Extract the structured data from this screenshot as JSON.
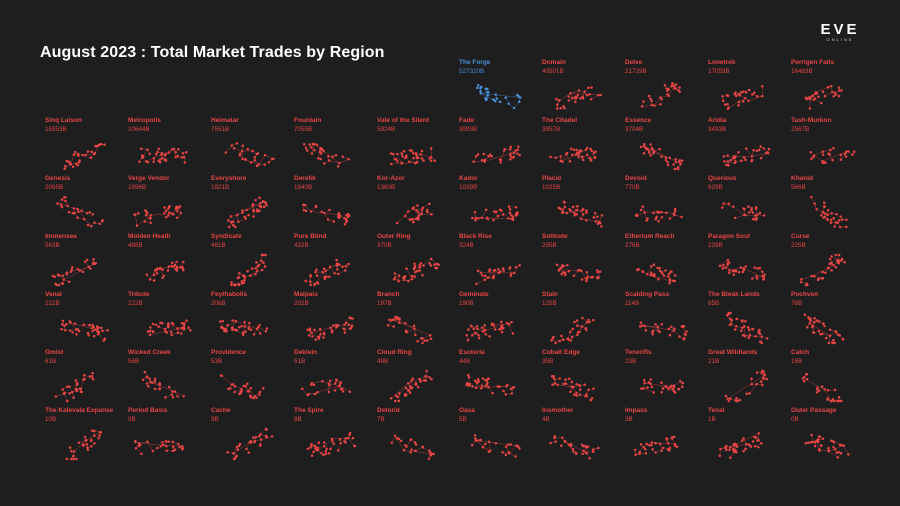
{
  "title": "August 2023 : Total Market Trades by Region",
  "logo": {
    "word": "EVE",
    "sub": "ONLINE"
  },
  "colors": {
    "highlight": "#4a90d9",
    "default": "#e84545",
    "background": "#1e1e1f",
    "title": "#ffffff"
  },
  "chart_data": {
    "type": "scatter",
    "title": "August 2023 : Total Market Trades by Region",
    "highlight_region": "The Forge",
    "regions": [
      {
        "name": "The Forge",
        "value": "527320B"
      },
      {
        "name": "Domain",
        "value": "40501B"
      },
      {
        "name": "Delve",
        "value": "21729B"
      },
      {
        "name": "Lonetrek",
        "value": "17059B"
      },
      {
        "name": "Perrigen Falls",
        "value": "16483B"
      },
      {
        "name": "Sinq Laison",
        "value": "15953B"
      },
      {
        "name": "Metropolis",
        "value": "10644B"
      },
      {
        "name": "Heimatar",
        "value": "7551B"
      },
      {
        "name": "Fountain",
        "value": "7055B"
      },
      {
        "name": "Vale of the Silent",
        "value": "5924B"
      },
      {
        "name": "Fade",
        "value": "3993B"
      },
      {
        "name": "The Citadel",
        "value": "3857B"
      },
      {
        "name": "Essence",
        "value": "3704B"
      },
      {
        "name": "Aridia",
        "value": "3493B"
      },
      {
        "name": "Tash-Murkon",
        "value": "2567B"
      },
      {
        "name": "Genesis",
        "value": "2065B"
      },
      {
        "name": "Verge Vendor",
        "value": "1996B"
      },
      {
        "name": "Everyshore",
        "value": "1921B"
      },
      {
        "name": "Derelik",
        "value": "1840B"
      },
      {
        "name": "Kor-Azor",
        "value": "1360B"
      },
      {
        "name": "Kador",
        "value": "1039B"
      },
      {
        "name": "Placid",
        "value": "1025B"
      },
      {
        "name": "Devoid",
        "value": "770B"
      },
      {
        "name": "Querious",
        "value": "629B"
      },
      {
        "name": "Khanid",
        "value": "566B"
      },
      {
        "name": "Immensea",
        "value": "563B"
      },
      {
        "name": "Molden Heath",
        "value": "488B"
      },
      {
        "name": "Syndicate",
        "value": "461B"
      },
      {
        "name": "Pure Blind",
        "value": "432B"
      },
      {
        "name": "Outer Ring",
        "value": "370B"
      },
      {
        "name": "Black Rise",
        "value": "324B"
      },
      {
        "name": "Solitude",
        "value": "295B"
      },
      {
        "name": "Etherium Reach",
        "value": "276B"
      },
      {
        "name": "Paragon Soul",
        "value": "228B"
      },
      {
        "name": "Curse",
        "value": "225B"
      },
      {
        "name": "Venal",
        "value": "222B"
      },
      {
        "name": "Tribute",
        "value": "222B"
      },
      {
        "name": "Feythabolis",
        "value": "206B"
      },
      {
        "name": "Malpais",
        "value": "202B"
      },
      {
        "name": "Branch",
        "value": "197B"
      },
      {
        "name": "Geminate",
        "value": "190B"
      },
      {
        "name": "Stain",
        "value": "125B"
      },
      {
        "name": "Scalding Pass",
        "value": "114B"
      },
      {
        "name": "The Bleak Lands",
        "value": "85B"
      },
      {
        "name": "Pochven",
        "value": "76B"
      },
      {
        "name": "Omist",
        "value": "61B"
      },
      {
        "name": "Wicked Creek",
        "value": "56B"
      },
      {
        "name": "Providence",
        "value": "53B"
      },
      {
        "name": "Deklein",
        "value": "51B"
      },
      {
        "name": "Cloud Ring",
        "value": "48B"
      },
      {
        "name": "Esoteria",
        "value": "44B"
      },
      {
        "name": "Cobalt Edge",
        "value": "35B"
      },
      {
        "name": "Tenerifis",
        "value": "23B"
      },
      {
        "name": "Great Wildlands",
        "value": "21B"
      },
      {
        "name": "Catch",
        "value": "16B"
      },
      {
        "name": "The Kalevala Expanse",
        "value": "10B"
      },
      {
        "name": "Period Basis",
        "value": "9B"
      },
      {
        "name": "Cache",
        "value": "9B"
      },
      {
        "name": "The Spire",
        "value": "8B"
      },
      {
        "name": "Detorid",
        "value": "7B"
      },
      {
        "name": "Oasa",
        "value": "5B"
      },
      {
        "name": "Insmother",
        "value": "4B"
      },
      {
        "name": "Impass",
        "value": "3B"
      },
      {
        "name": "Tenal",
        "value": "1B"
      },
      {
        "name": "Outer Passage",
        "value": "0B"
      }
    ]
  }
}
